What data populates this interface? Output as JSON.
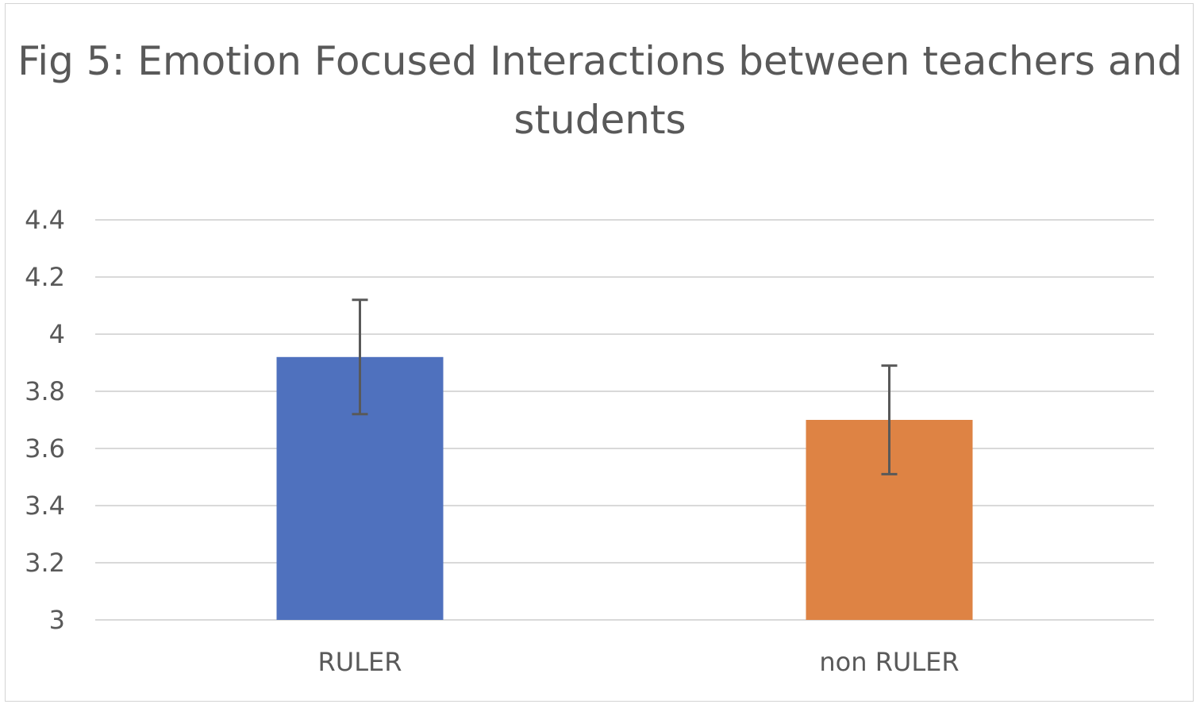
{
  "chart_data": {
    "type": "bar",
    "title": "Fig 5: Emotion Focused Interactions between teachers and students",
    "categories": [
      "RULER",
      "non RULER"
    ],
    "values": [
      3.92,
      3.7
    ],
    "error_bars": [
      {
        "low": 3.72,
        "high": 4.12
      },
      {
        "low": 3.51,
        "high": 3.89
      }
    ],
    "bar_colors": [
      "#4f71be",
      "#de8344"
    ],
    "ylim": [
      3,
      4.4
    ],
    "yticks": [
      "3",
      "3.2",
      "3.4",
      "3.6",
      "3.8",
      "4",
      "4.2",
      "4.4"
    ],
    "ytick_values": [
      3,
      3.2,
      3.4,
      3.6,
      3.8,
      4,
      4.2,
      4.4
    ],
    "xlabel": "",
    "ylabel": "",
    "grid": true,
    "legend": false
  }
}
